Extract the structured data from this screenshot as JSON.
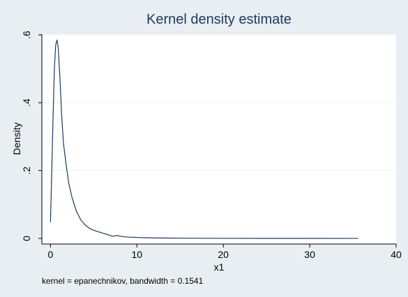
{
  "chart_data": {
    "type": "line",
    "title": "Kernel density estimate",
    "xlabel": "x1",
    "ylabel": "Density",
    "note": "kernel = epanechnikov, bandwidth = 0.1541",
    "xlim": [
      -1,
      40
    ],
    "ylim": [
      0,
      0.6
    ],
    "xticks": [
      0,
      10,
      20,
      30,
      40
    ],
    "xtick_labels": [
      "0",
      "10",
      "20",
      "30",
      "40"
    ],
    "yticks": [
      0,
      0.2,
      0.4,
      0.6
    ],
    "ytick_labels": [
      "0",
      ".2",
      ".4",
      ".6"
    ],
    "grid": true,
    "legend": "none",
    "series": [
      {
        "color": "#1a3a5c",
        "x": [
          0.0,
          0.15,
          0.3,
          0.45,
          0.6,
          0.75,
          0.9,
          1.1,
          1.3,
          1.5,
          1.8,
          2.1,
          2.5,
          3.0,
          3.5,
          4.0,
          4.5,
          5.0,
          5.5,
          6.0,
          6.5,
          7.0,
          7.3,
          7.6,
          8.0,
          8.5,
          9.0,
          10.0,
          11.0,
          12.0,
          14.0,
          17.0,
          20.0,
          25.0,
          30.0,
          35.6
        ],
        "y": [
          0.048,
          0.2,
          0.36,
          0.5,
          0.57,
          0.585,
          0.56,
          0.47,
          0.36,
          0.28,
          0.22,
          0.165,
          0.12,
          0.08,
          0.055,
          0.04,
          0.03,
          0.024,
          0.02,
          0.016,
          0.012,
          0.008,
          0.006,
          0.009,
          0.007,
          0.005,
          0.004,
          0.003,
          0.002,
          0.0015,
          0.001,
          0.0006,
          0.0004,
          0.0003,
          0.0002,
          0.0001
        ]
      }
    ]
  }
}
